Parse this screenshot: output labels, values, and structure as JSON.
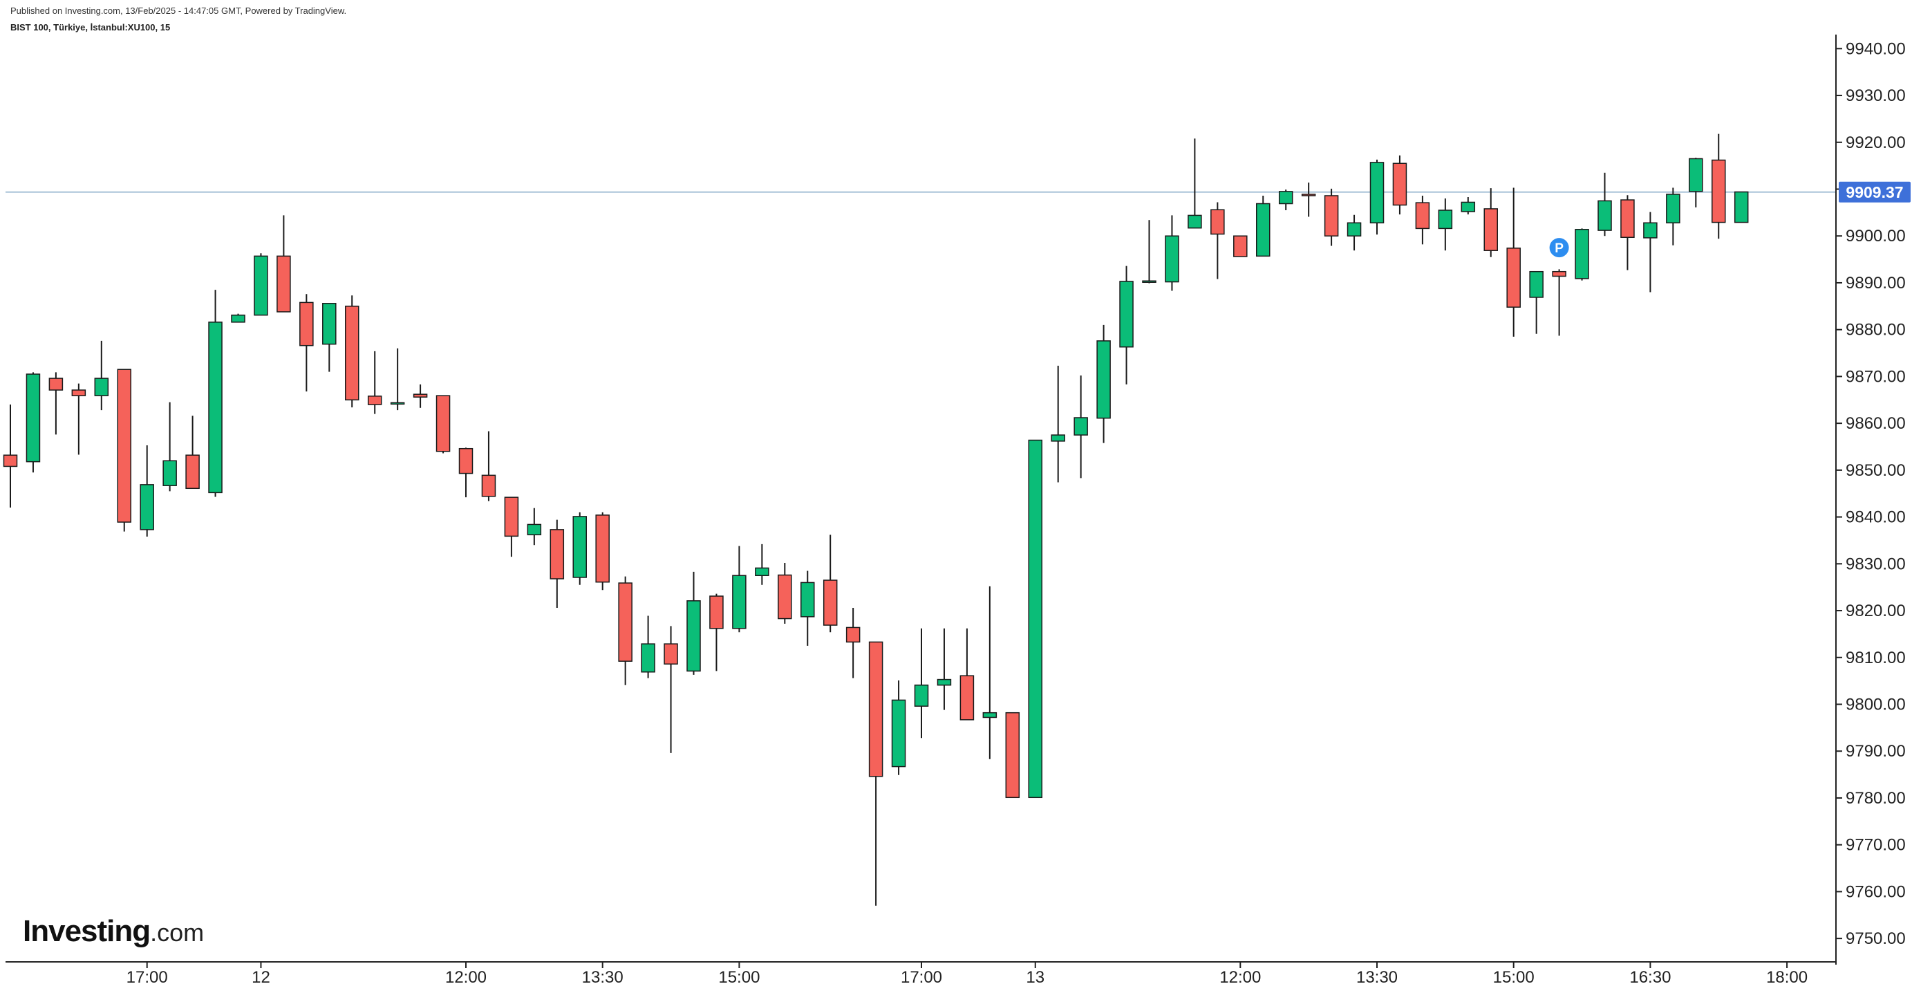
{
  "header": {
    "published": "Published on Investing.com, 13/Feb/2025 - 14:47:05 GMT, Powered by TradingView.",
    "symbol": "BIST 100, Türkiye, İstanbul:XU100, 15"
  },
  "logo": {
    "main": "Investing",
    "suffix": ".com"
  },
  "colors": {
    "up": "#0bbd78",
    "down": "#f5625a",
    "price_line": "#aac4d8",
    "price_badge": "#3e70d9",
    "marker": "#2d8df0"
  },
  "chart_data": {
    "type": "candlestick",
    "ylim": [
      9745,
      9943
    ],
    "y_ticks": [
      "9940.00",
      "9930.00",
      "9920.00",
      "9910.00",
      "9900.00",
      "9890.00",
      "9880.00",
      "9870.00",
      "9860.00",
      "9850.00",
      "9840.00",
      "9830.00",
      "9820.00",
      "9810.00",
      "9800.00",
      "9790.00",
      "9780.00",
      "9770.00",
      "9760.00",
      "9750.00"
    ],
    "x_ticks": [
      {
        "label": "17:00",
        "bar": 6
      },
      {
        "label": "12",
        "bar": 11
      },
      {
        "label": "12:00",
        "bar": 20
      },
      {
        "label": "13:30",
        "bar": 26
      },
      {
        "label": "15:00",
        "bar": 32
      },
      {
        "label": "17:00",
        "bar": 40
      },
      {
        "label": "13",
        "bar": 45
      },
      {
        "label": "12:00",
        "bar": 54
      },
      {
        "label": "13:30",
        "bar": 60
      },
      {
        "label": "15:00",
        "bar": 66
      },
      {
        "label": "16:30",
        "bar": 72
      },
      {
        "label": "18:00",
        "bar": 78
      }
    ],
    "last_price": "9909.37",
    "marker": {
      "label": "P",
      "bar": 68,
      "value": 9897.5
    },
    "candles": [
      [
        9853.2,
        9864,
        9842,
        9850.8
      ],
      [
        9851.8,
        9870.9,
        9849.5,
        9870.5
      ],
      [
        9869.6,
        9870.9,
        9857.6,
        9867.1
      ],
      [
        9867.1,
        9868.5,
        9853.3,
        9865.9
      ],
      [
        9865.9,
        9877.6,
        9862.8,
        9869.6
      ],
      [
        9871.5,
        9871.5,
        9836.9,
        9838.9
      ],
      [
        9837.3,
        9855.3,
        9835.8,
        9846.9
      ],
      [
        9846.7,
        9864.5,
        9845.5,
        9852
      ],
      [
        9853.2,
        9861.6,
        9846.1,
        9846.1
      ],
      [
        9845.2,
        9888.5,
        9844.3,
        9881.6
      ],
      [
        9881.6,
        9883.4,
        9881.6,
        9883.1
      ],
      [
        9883.1,
        9896.3,
        9883.1,
        9895.7
      ],
      [
        9895.7,
        9904.4,
        9883.8,
        9883.8
      ],
      [
        9885.8,
        9887.6,
        9866.8,
        9876.6
      ],
      [
        9876.9,
        9885.6,
        9871,
        9885.6
      ],
      [
        9885,
        9887.3,
        9863.4,
        9865
      ],
      [
        9865.8,
        9875.4,
        9862,
        9864
      ],
      [
        9864.4,
        9876,
        9862.8,
        9864.4
      ],
      [
        9866.2,
        9868.3,
        9863.3,
        9865.6
      ],
      [
        9865.9,
        9865.9,
        9853.6,
        9854
      ],
      [
        9854.6,
        9854.8,
        9844.2,
        9849.3
      ],
      [
        9848.9,
        9858.3,
        9843.4,
        9844.4
      ],
      [
        9844.2,
        9844.2,
        9831.5,
        9835.9
      ],
      [
        9836.2,
        9841.9,
        9834,
        9838.4
      ],
      [
        9837.3,
        9839.4,
        9820.6,
        9826.8
      ],
      [
        9827.1,
        9841,
        9825.5,
        9840.1
      ],
      [
        9840.4,
        9841,
        9824.4,
        9826.1
      ],
      [
        9825.9,
        9827.3,
        9804.1,
        9809.2
      ],
      [
        9806.9,
        9818.9,
        9805.6,
        9812.9
      ],
      [
        9812.9,
        9816.7,
        9789.6,
        9808.6
      ],
      [
        9807.1,
        9828.3,
        9806.3,
        9822.1
      ],
      [
        9823.1,
        9823.6,
        9807.1,
        9816.2
      ],
      [
        9816.2,
        9833.8,
        9815.4,
        9827.5
      ],
      [
        9827.5,
        9834.2,
        9825.5,
        9829.1
      ],
      [
        9827.6,
        9830.2,
        9817.2,
        9818.3
      ],
      [
        9818.7,
        9828.5,
        9812.5,
        9826
      ],
      [
        9826.5,
        9836.2,
        9815.4,
        9816.9
      ],
      [
        9816.4,
        9820.6,
        9805.6,
        9813.3
      ],
      [
        9813.3,
        9813.3,
        9757,
        9784.6
      ],
      [
        9786.7,
        9805.1,
        9784.9,
        9800.9
      ],
      [
        9799.6,
        9816.2,
        9792.8,
        9804.1
      ],
      [
        9804.1,
        9816.2,
        9798.8,
        9805.3
      ],
      [
        9806.1,
        9816.2,
        9796.7,
        9796.7
      ],
      [
        9797.2,
        9825.2,
        9788.3,
        9798.2
      ],
      [
        9798.2,
        9798.2,
        9780.1,
        9780.1
      ],
      [
        9780.1,
        9856.4,
        9780.1,
        9856.4
      ],
      [
        9856.2,
        9872.3,
        9847.4,
        9857.5
      ],
      [
        9857.5,
        9870.2,
        9848.3,
        9861.2
      ],
      [
        9861.1,
        9881,
        9855.8,
        9877.6
      ],
      [
        9876.3,
        9893.6,
        9868.3,
        9890.3
      ],
      [
        9890.3,
        9903.4,
        9889.9,
        9890.4
      ],
      [
        9890.2,
        9904.4,
        9888.3,
        9900
      ],
      [
        9901.7,
        9920.8,
        9901.7,
        9904.4
      ],
      [
        9905.6,
        9907.2,
        9890.8,
        9900.4
      ],
      [
        9900,
        9900,
        9895.6,
        9895.6
      ],
      [
        9895.7,
        9908.6,
        9895.7,
        9906.9
      ],
      [
        9906.9,
        9909.9,
        9905.5,
        9909.5
      ],
      [
        9908.9,
        9911.4,
        9904.1,
        9908.6
      ],
      [
        9908.6,
        9910.1,
        9897.9,
        9900
      ],
      [
        9900,
        9904.5,
        9896.9,
        9902.8
      ],
      [
        9902.8,
        9916.3,
        9900.3,
        9915.7
      ],
      [
        9915.5,
        9917.2,
        9904.6,
        9906.6
      ],
      [
        9907.1,
        9908.6,
        9898.2,
        9901.6
      ],
      [
        9901.6,
        9908,
        9896.9,
        9905.5
      ],
      [
        9905.2,
        9908.3,
        9904.6,
        9907.2
      ],
      [
        9905.8,
        9910.2,
        9895.5,
        9896.9
      ],
      [
        9897.4,
        9910.3,
        9878.5,
        9884.8
      ],
      [
        9886.9,
        9892.4,
        9879.1,
        9892.4
      ],
      [
        9892.4,
        9892.9,
        9878.7,
        9891.4
      ],
      [
        9890.9,
        9901.6,
        9890.5,
        9901.4
      ],
      [
        9901.2,
        9913.5,
        9900,
        9907.5
      ],
      [
        9907.7,
        9908.7,
        9892.7,
        9899.7
      ],
      [
        9899.6,
        9905.1,
        9888,
        9902.8
      ],
      [
        9902.8,
        9910.3,
        9898,
        9908.9
      ],
      [
        9909.5,
        9916.7,
        9906.1,
        9916.5
      ],
      [
        9916.2,
        9921.8,
        9899.4,
        9902.9
      ],
      [
        9902.9,
        9909.4,
        9902.9,
        9909.4
      ]
    ]
  }
}
